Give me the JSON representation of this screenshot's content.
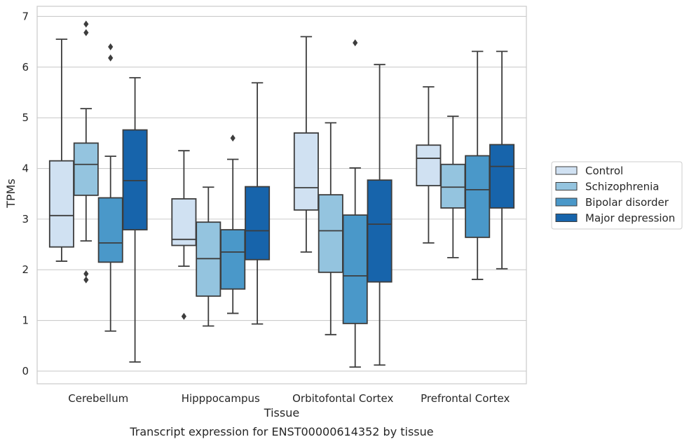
{
  "chart_data": {
    "type": "boxplot",
    "title": "Transcript expression for ENST00000614352 by tissue",
    "xlabel": "Tissue",
    "ylabel": "TPMs",
    "ylim": [
      -0.25,
      7.2
    ],
    "yticks": [
      0,
      1,
      2,
      3,
      4,
      5,
      6,
      7
    ],
    "grid": true,
    "legend_position": "right",
    "categories": [
      "Cerebellum",
      "Hipppocampus",
      "Orbitofontal Cortex",
      "Prefrontal Cortex"
    ],
    "series": [
      {
        "name": "Control",
        "color": "#d0e1f2",
        "boxes": [
          {
            "whisker_low": 2.17,
            "q1": 2.45,
            "median": 3.07,
            "q3": 4.15,
            "whisker_high": 6.55,
            "outliers": []
          },
          {
            "whisker_low": 2.07,
            "q1": 2.48,
            "median": 2.6,
            "q3": 3.4,
            "whisker_high": 4.35,
            "outliers": [
              1.08
            ]
          },
          {
            "whisker_low": 2.35,
            "q1": 3.18,
            "median": 3.62,
            "q3": 4.7,
            "whisker_high": 6.6,
            "outliers": []
          },
          {
            "whisker_low": 2.53,
            "q1": 3.66,
            "median": 4.2,
            "q3": 4.46,
            "whisker_high": 5.61,
            "outliers": []
          }
        ]
      },
      {
        "name": "Schizophrenia",
        "color": "#94c4df",
        "boxes": [
          {
            "whisker_low": 2.57,
            "q1": 3.47,
            "median": 4.08,
            "q3": 4.5,
            "whisker_high": 5.18,
            "outliers": [
              6.85,
              6.68,
              1.92,
              1.8
            ]
          },
          {
            "whisker_low": 0.89,
            "q1": 1.48,
            "median": 2.22,
            "q3": 2.94,
            "whisker_high": 3.63,
            "outliers": []
          },
          {
            "whisker_low": 0.72,
            "q1": 1.95,
            "median": 2.77,
            "q3": 3.48,
            "whisker_high": 4.9,
            "outliers": []
          },
          {
            "whisker_low": 2.24,
            "q1": 3.22,
            "median": 3.63,
            "q3": 4.08,
            "whisker_high": 5.03,
            "outliers": []
          }
        ]
      },
      {
        "name": "Bipolar disorder",
        "color": "#4a98c9",
        "boxes": [
          {
            "whisker_low": 0.79,
            "q1": 2.15,
            "median": 2.53,
            "q3": 3.42,
            "whisker_high": 4.24,
            "outliers": [
              6.4,
              6.18
            ]
          },
          {
            "whisker_low": 1.14,
            "q1": 1.62,
            "median": 2.35,
            "q3": 2.79,
            "whisker_high": 4.18,
            "outliers": [
              4.6
            ]
          },
          {
            "whisker_low": 0.08,
            "q1": 0.94,
            "median": 1.88,
            "q3": 3.08,
            "whisker_high": 4.01,
            "outliers": [
              6.48
            ]
          },
          {
            "whisker_low": 1.81,
            "q1": 2.64,
            "median": 3.58,
            "q3": 4.25,
            "whisker_high": 6.31,
            "outliers": []
          }
        ]
      },
      {
        "name": "Major depression",
        "color": "#1764ab",
        "boxes": [
          {
            "whisker_low": 0.18,
            "q1": 2.79,
            "median": 3.76,
            "q3": 4.76,
            "whisker_high": 5.79,
            "outliers": []
          },
          {
            "whisker_low": 0.93,
            "q1": 2.2,
            "median": 2.77,
            "q3": 3.64,
            "whisker_high": 5.69,
            "outliers": []
          },
          {
            "whisker_low": 0.12,
            "q1": 1.76,
            "median": 2.9,
            "q3": 3.77,
            "whisker_high": 6.05,
            "outliers": []
          },
          {
            "whisker_low": 2.02,
            "q1": 3.22,
            "median": 4.04,
            "q3": 4.47,
            "whisker_high": 6.31,
            "outliers": []
          }
        ]
      }
    ]
  }
}
